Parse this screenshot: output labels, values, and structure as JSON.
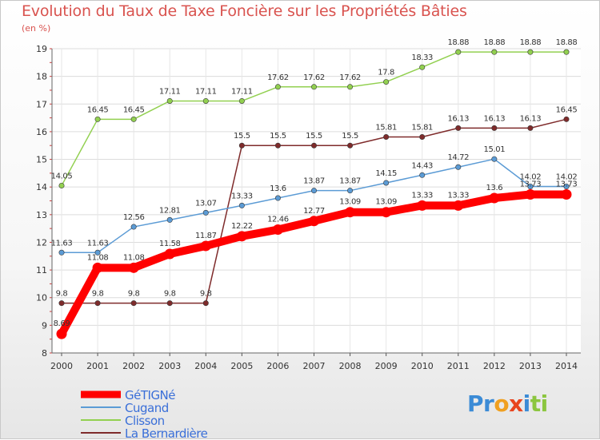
{
  "title": "Evolution du Taux de Taxe Foncière sur les Propriétés Bâties",
  "unit_label": "(en %)",
  "logo": {
    "text": "Proxiti",
    "letters": [
      {
        "ch": "P",
        "color": "#3b8bd6"
      },
      {
        "ch": "r",
        "color": "#3b8bd6"
      },
      {
        "ch": "o",
        "color": "#f0a020"
      },
      {
        "ch": "x",
        "color": "#e8441e"
      },
      {
        "ch": "i",
        "color": "#3b8bd6"
      },
      {
        "ch": "t",
        "color": "#8cc63f"
      },
      {
        "ch": "i",
        "color": "#8cc63f"
      }
    ]
  },
  "chart_data": {
    "type": "line",
    "title": "Evolution du Taux de Taxe Foncière sur les Propriétés Bâties",
    "ylabel": "(en %)",
    "xlabel": "",
    "ylim": [
      8,
      19
    ],
    "yticks": [
      8,
      9,
      10,
      11,
      12,
      13,
      14,
      15,
      16,
      17,
      18,
      19
    ],
    "x": [
      "2000",
      "2001",
      "2002",
      "2003",
      "2004",
      "2005",
      "2006",
      "2007",
      "2008",
      "2009",
      "2010",
      "2011",
      "2012",
      "2013",
      "2014"
    ],
    "grid": true,
    "legend": "bottom-left",
    "series": [
      {
        "name": "GéTIGNé",
        "color": "#ff0000",
        "width": 10,
        "values": [
          8.69,
          11.08,
          11.08,
          11.58,
          11.87,
          12.22,
          12.46,
          12.77,
          13.09,
          13.09,
          13.33,
          13.33,
          13.6,
          13.73,
          13.73
        ],
        "labels": [
          "8.69",
          "11.08",
          "11.08",
          "11.58",
          "11.87",
          "12.22",
          "12.46",
          "12.77",
          "13.09",
          "13.09",
          "13.33",
          "13.33",
          "13.6",
          "13.73",
          "13.73"
        ]
      },
      {
        "name": "Cugand",
        "color": "#5b9bd5",
        "width": 1.5,
        "values": [
          11.63,
          11.63,
          12.56,
          12.81,
          13.07,
          13.33,
          13.6,
          13.87,
          13.87,
          14.15,
          14.43,
          14.72,
          15.01,
          14.02,
          14.02
        ],
        "labels": [
          "11.63",
          "11.63",
          "12.56",
          "12.81",
          "13.07",
          "13.33",
          "13.6",
          "13.87",
          "13.87",
          "14.15",
          "14.43",
          "14.72",
          "15.01",
          "14.02",
          "14.02"
        ]
      },
      {
        "name": "Clisson",
        "color": "#92d050",
        "width": 1.5,
        "values": [
          14.05,
          16.45,
          16.45,
          17.11,
          17.11,
          17.11,
          17.62,
          17.62,
          17.62,
          17.8,
          18.33,
          18.88,
          18.88,
          18.88,
          18.88
        ],
        "labels": [
          "14.05",
          "16.45",
          "16.45",
          "17.11",
          "17.11",
          "17.11",
          "17.62",
          "17.62",
          "17.62",
          "17.8",
          "18.33",
          "18.88",
          "18.88",
          "18.88",
          "18.88"
        ]
      },
      {
        "name": "La Bernardière",
        "color": "#7f2b2b",
        "width": 1.5,
        "values": [
          9.8,
          9.8,
          9.8,
          9.8,
          9.8,
          15.5,
          15.5,
          15.5,
          15.5,
          15.81,
          15.81,
          16.13,
          16.13,
          16.13,
          16.45
        ],
        "labels": [
          "9.8",
          "9.8",
          "9.8",
          "9.8",
          "9.8",
          "15.5",
          "15.5",
          "15.5",
          "15.5",
          "15.81",
          "15.81",
          "16.13",
          "16.13",
          "16.13",
          "16.45"
        ]
      }
    ]
  }
}
